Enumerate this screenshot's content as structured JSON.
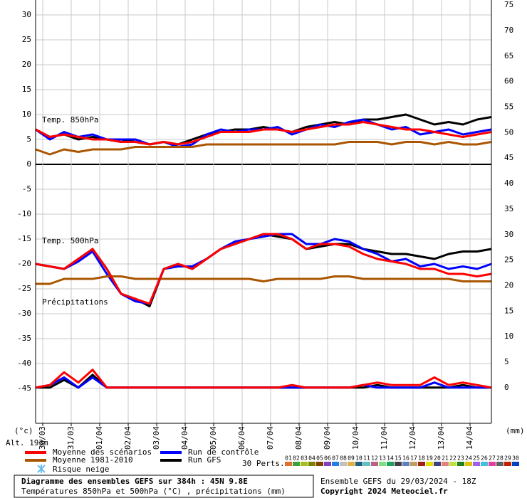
{
  "chart_data": {
    "type": "line",
    "altitude": "Alt. 193m",
    "y_unit": "(°c)",
    "y2_unit": "(mm)",
    "panel_labels": [
      "Temp. 850hPa",
      "Temp. 500hPa",
      "Précipitations"
    ],
    "xlim": [
      0,
      384
    ],
    "x": [
      0,
      12,
      24,
      36,
      48,
      60,
      72,
      84,
      96,
      108,
      120,
      132,
      144,
      156,
      168,
      180,
      192,
      204,
      216,
      228,
      240,
      252,
      264,
      276,
      288,
      300,
      312,
      324,
      336,
      348,
      360,
      372,
      384
    ],
    "xticks": [
      {
        "value": 6,
        "label": "30/03"
      },
      {
        "value": 30,
        "label": "31/03"
      },
      {
        "value": 54,
        "label": "01/04"
      },
      {
        "value": 78,
        "label": "02/04"
      },
      {
        "value": 102,
        "label": "03/04"
      },
      {
        "value": 126,
        "label": "04/04"
      },
      {
        "value": 150,
        "label": "05/04"
      },
      {
        "value": 174,
        "label": "06/04"
      },
      {
        "value": 198,
        "label": "07/04"
      },
      {
        "value": 222,
        "label": "08/04"
      },
      {
        "value": 246,
        "label": "09/04"
      },
      {
        "value": 270,
        "label": "10/04"
      },
      {
        "value": 294,
        "label": "11/04"
      },
      {
        "value": 318,
        "label": "12/04"
      },
      {
        "value": 342,
        "label": "13/04"
      },
      {
        "value": 366,
        "label": "14/04"
      }
    ],
    "ylim": [
      -52,
      33
    ],
    "yticks": [
      -45,
      -40,
      -35,
      -30,
      -25,
      -20,
      -15,
      -10,
      -5,
      0,
      5,
      10,
      15,
      20,
      25,
      30
    ],
    "y2lim": [
      -7,
      76
    ],
    "y2ticks": [
      0,
      5,
      10,
      15,
      20,
      25,
      30,
      35,
      40,
      45,
      50,
      55,
      60,
      65,
      70,
      75
    ],
    "grid": true,
    "series": [
      {
        "name": "Moyenne des scénarios",
        "color": "#ff0000",
        "t850": [
          7,
          5.5,
          6,
          5.5,
          5,
          5,
          4.5,
          4.5,
          4,
          4.5,
          4,
          4.5,
          5.5,
          6.5,
          6.5,
          6.5,
          7,
          7,
          6.5,
          7,
          7.5,
          8,
          8,
          8.5,
          8,
          7.5,
          7,
          7,
          6.5,
          6,
          5.5,
          6,
          6.5
        ],
        "t500": [
          -20,
          -20.5,
          -21,
          -19,
          -17,
          -21,
          -26,
          -27,
          -28,
          -21,
          -20,
          -21,
          -19,
          -17,
          -16,
          -15,
          -14,
          -14,
          -15,
          -17,
          -16,
          -16,
          -16.5,
          -18,
          -19,
          -19.5,
          -20,
          -21,
          -21,
          -22,
          -22,
          -22.5,
          -22
        ],
        "precip": [
          0,
          0.5,
          3,
          1,
          3.5,
          0,
          0,
          0,
          0,
          0,
          0,
          0,
          0,
          0,
          0,
          0,
          0,
          0,
          0.5,
          0,
          0,
          0,
          0,
          0.5,
          1,
          0.5,
          0.5,
          0.5,
          2,
          0.5,
          1,
          0.5,
          0
        ]
      },
      {
        "name": "Moyenne 1981-2010",
        "color": "#aa5500",
        "t850": [
          3,
          2,
          3,
          2.5,
          3,
          3,
          3,
          3.5,
          3.5,
          3.5,
          3.5,
          3.5,
          4,
          4,
          4,
          4,
          4,
          4,
          4,
          4,
          4,
          4,
          4.5,
          4.5,
          4.5,
          4,
          4.5,
          4.5,
          4,
          4.5,
          4,
          4,
          4.5
        ],
        "t500": [
          -24,
          -24,
          -23,
          -23,
          -23,
          -22.5,
          -22.5,
          -23,
          -23,
          -23,
          -23,
          -23,
          -23,
          -23,
          -23,
          -23,
          -23.5,
          -23,
          -23,
          -23,
          -23,
          -22.5,
          -22.5,
          -23,
          -23,
          -23,
          -23,
          -23,
          -23,
          -23,
          -23.5,
          -23.5,
          -23.5
        ]
      },
      {
        "name": "Run de contrôle",
        "color": "#0000ff",
        "t850": [
          7,
          5,
          6.5,
          5.5,
          6,
          5,
          5,
          5,
          4,
          4.5,
          3.5,
          4,
          6,
          7,
          6.5,
          7,
          7,
          7.5,
          6,
          7,
          8,
          7.5,
          8.5,
          9,
          8,
          7,
          7.5,
          6,
          6.5,
          7,
          6,
          6.5,
          7
        ],
        "t500": [
          -20,
          -20.5,
          -21,
          -19.5,
          -17.5,
          -22,
          -26,
          -27.5,
          -28,
          -21,
          -20.5,
          -20.5,
          -19,
          -17,
          -15.5,
          -15,
          -14.5,
          -14,
          -14,
          -16,
          -16,
          -15,
          -15.5,
          -17,
          -18,
          -19.5,
          -19,
          -20.5,
          -20,
          -21,
          -20.5,
          -21,
          -20
        ],
        "precip": [
          0,
          0.5,
          2,
          0,
          2,
          0,
          0,
          0,
          0,
          0,
          0,
          0,
          0,
          0,
          0,
          0,
          0,
          0,
          0,
          0,
          0,
          0,
          0,
          0.5,
          0,
          0,
          0,
          0,
          1,
          0,
          0,
          0,
          0
        ]
      },
      {
        "name": "Run GFS",
        "color": "#000000",
        "t850": [
          7,
          5.5,
          6,
          5,
          5.5,
          5,
          4.5,
          5,
          4,
          4.5,
          4,
          5,
          6,
          6.5,
          7,
          7,
          7.5,
          7,
          6.5,
          7.5,
          8,
          8.5,
          8,
          9,
          9,
          9.5,
          10,
          9,
          8,
          8.5,
          8,
          9,
          9.5
        ],
        "t500": [
          -20,
          -20.5,
          -21,
          -19,
          -17,
          -21,
          -26,
          -27,
          -28.5,
          -21,
          -20,
          -21,
          -19,
          -17,
          -16,
          -15,
          -14,
          -14.5,
          -15,
          -17,
          -16.5,
          -16,
          -16,
          -17,
          -17.5,
          -18,
          -18,
          -18.5,
          -19,
          -18,
          -17.5,
          -17.5,
          -17
        ],
        "precip": [
          0,
          0,
          1.5,
          0,
          2.5,
          0,
          0,
          0,
          0,
          0,
          0,
          0,
          0,
          0,
          0,
          0,
          0,
          0,
          0,
          0,
          0,
          0,
          0,
          0,
          0.5,
          0,
          0,
          0,
          0,
          0,
          0.5,
          0,
          0
        ]
      }
    ],
    "snow_label": "Risque neige",
    "snow_color": "#66bbee",
    "perturbations_label": "30 Perts.",
    "perturbations": [
      {
        "name": "01",
        "color": "#e07030"
      },
      {
        "name": "02",
        "color": "#40a040"
      },
      {
        "name": "03",
        "color": "#a0c020"
      },
      {
        "name": "04",
        "color": "#808000"
      },
      {
        "name": "05",
        "color": "#804000"
      },
      {
        "name": "06",
        "color": "#8040c0"
      },
      {
        "name": "07",
        "color": "#2080e0"
      },
      {
        "name": "08",
        "color": "#c0c0c0"
      },
      {
        "name": "09",
        "color": "#e0b040"
      },
      {
        "name": "10",
        "color": "#206080"
      },
      {
        "name": "11",
        "color": "#60c0c0"
      },
      {
        "name": "12",
        "color": "#c06080"
      },
      {
        "name": "13",
        "color": "#80e080"
      },
      {
        "name": "14",
        "color": "#20a060"
      },
      {
        "name": "15",
        "color": "#404040"
      },
      {
        "name": "16",
        "color": "#6080c0"
      },
      {
        "name": "17",
        "color": "#c0a060"
      },
      {
        "name": "18",
        "color": "#a02020"
      },
      {
        "name": "19",
        "color": "#e0e000"
      },
      {
        "name": "20",
        "color": "#404080"
      },
      {
        "name": "21",
        "color": "#e08080"
      },
      {
        "name": "22",
        "color": "#c0e040"
      },
      {
        "name": "23",
        "color": "#208020"
      },
      {
        "name": "24",
        "color": "#e0c000"
      },
      {
        "name": "25",
        "color": "#a060e0"
      },
      {
        "name": "26",
        "color": "#40c0e0"
      },
      {
        "name": "27",
        "color": "#e040a0"
      },
      {
        "name": "28",
        "color": "#606060"
      },
      {
        "name": "29",
        "color": "#c02000"
      },
      {
        "name": "30",
        "color": "#0040c0"
      }
    ],
    "footer_title": "Diagramme des ensembles GEFS sur 384h : 45N 9.8E",
    "footer_subtitle": "Températures 850hPa et 500hPa (°C) , précipitations (mm)",
    "run_info": "Ensemble GEFS du 29/03/2024 - 18Z",
    "copyright": "Copyright 2024 Meteociel.fr"
  }
}
